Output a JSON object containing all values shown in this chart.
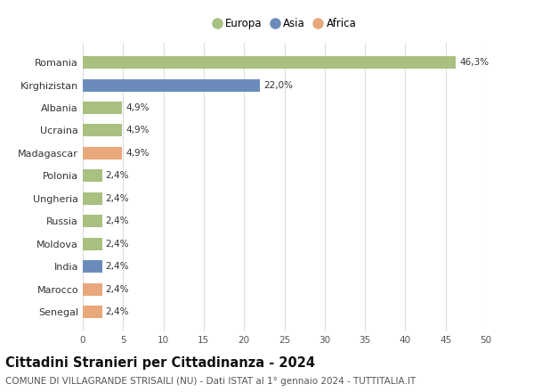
{
  "categories": [
    "Senegal",
    "Marocco",
    "India",
    "Moldova",
    "Russia",
    "Ungheria",
    "Polonia",
    "Madagascar",
    "Ucraina",
    "Albania",
    "Kirghizistan",
    "Romania"
  ],
  "values": [
    2.4,
    2.4,
    2.4,
    2.4,
    2.4,
    2.4,
    2.4,
    4.9,
    4.9,
    4.9,
    22.0,
    46.3
  ],
  "labels": [
    "2,4%",
    "2,4%",
    "2,4%",
    "2,4%",
    "2,4%",
    "2,4%",
    "2,4%",
    "4,9%",
    "4,9%",
    "4,9%",
    "22,0%",
    "46,3%"
  ],
  "colors": [
    "#e8a87c",
    "#e8a87c",
    "#6b8cba",
    "#a8c080",
    "#a8c080",
    "#a8c080",
    "#a8c080",
    "#e8a87c",
    "#a8c080",
    "#a8c080",
    "#6b8cba",
    "#a8c080"
  ],
  "continent_colors": {
    "Europa": "#a8c080",
    "Asia": "#6b8cba",
    "Africa": "#e8a87c"
  },
  "title": "Cittadini Stranieri per Cittadinanza - 2024",
  "subtitle": "COMUNE DI VILLAGRANDE STRISAILI (NU) - Dati ISTAT al 1° gennaio 2024 - TUTTITALIA.IT",
  "xlim": [
    0,
    50
  ],
  "xticks": [
    0,
    5,
    10,
    15,
    20,
    25,
    30,
    35,
    40,
    45,
    50
  ],
  "background_color": "#ffffff",
  "grid_color": "#dddddd",
  "bar_height": 0.55,
  "title_fontsize": 10.5,
  "subtitle_fontsize": 7.5,
  "legend_entries": [
    "Europa",
    "Asia",
    "Africa"
  ]
}
